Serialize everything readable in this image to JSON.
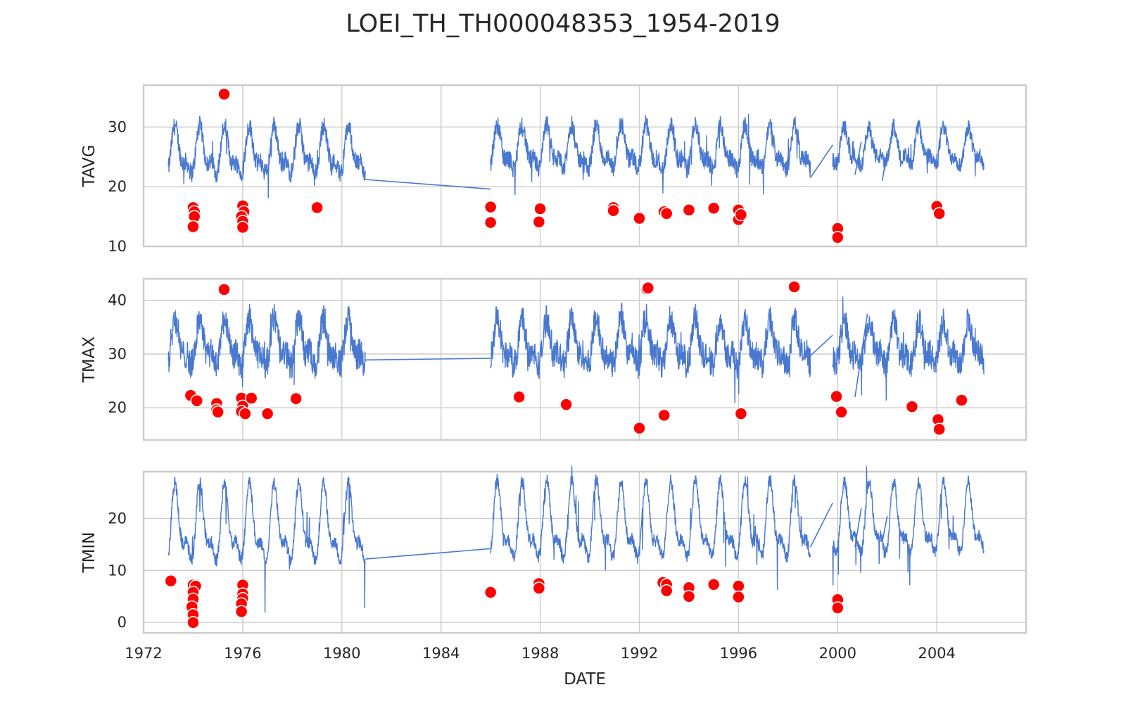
{
  "chart_data": {
    "type": "line",
    "title": "LOEI_TH_TH000048353_1954-2019",
    "xlabel": "DATE",
    "x_ticks": [
      "1972",
      "1976",
      "1980",
      "1984",
      "1988",
      "1992",
      "1996",
      "2000",
      "2004"
    ],
    "xlim": [
      1972.0,
      2007.6
    ],
    "grid": true,
    "series_color": "#4878cf",
    "outlier_color": "#ff0000",
    "panels": [
      {
        "ylabel": "TAVG",
        "ylim": [
          10,
          37
        ],
        "y_ticks": [
          10,
          20,
          30
        ],
        "segments": [
          {
            "x0": 1973.0,
            "x1": 1980.95,
            "base": 25.5,
            "amp": 3.2,
            "spread": 1.6
          },
          {
            "x0": 1986.0,
            "x1": 1998.9,
            "base": 26.0,
            "amp": 3.0,
            "spread": 1.6
          },
          {
            "x0": 1999.8,
            "x1": 2005.9,
            "base": 26.2,
            "amp": 2.6,
            "spread": 1.4
          }
        ],
        "connectors": [
          {
            "x0": 1980.95,
            "y0": 21.2,
            "x1": 1986.0,
            "y1": 19.6
          },
          {
            "x0": 1998.9,
            "y0": 21.5,
            "x1": 1999.8,
            "y1": 27.0
          },
          {
            "x0": 2000.7,
            "y0": 22.0,
            "x1": 2000.95,
            "y1": 27.5
          },
          {
            "x0": 2001.8,
            "y0": 21.0,
            "x1": 2002.0,
            "y1": 26.0
          }
        ],
        "outliers": [
          [
            1974.0,
            16.5
          ],
          [
            1974.05,
            15.8
          ],
          [
            1974.05,
            15.0
          ],
          [
            1974.0,
            13.3
          ],
          [
            1975.25,
            35.5
          ],
          [
            1976.0,
            16.8
          ],
          [
            1976.05,
            15.8
          ],
          [
            1975.95,
            15.0
          ],
          [
            1976.0,
            14.2
          ],
          [
            1976.0,
            13.2
          ],
          [
            1979.0,
            16.5
          ],
          [
            1986.0,
            16.6
          ],
          [
            1986.0,
            14.0
          ],
          [
            1988.0,
            16.3
          ],
          [
            1987.95,
            14.1
          ],
          [
            1990.95,
            16.5
          ],
          [
            1990.95,
            16.0
          ],
          [
            1992.0,
            14.7
          ],
          [
            1993.0,
            15.8
          ],
          [
            1993.1,
            15.5
          ],
          [
            1994.0,
            16.1
          ],
          [
            1995.0,
            16.4
          ],
          [
            1996.0,
            16.1
          ],
          [
            1996.0,
            14.5
          ],
          [
            1996.1,
            15.3
          ],
          [
            2000.0,
            13.0
          ],
          [
            2000.0,
            11.5
          ],
          [
            2004.0,
            16.7
          ],
          [
            2004.1,
            15.5
          ]
        ]
      },
      {
        "ylabel": "TMAX",
        "ylim": [
          14,
          44
        ],
        "y_ticks": [
          20,
          30,
          40
        ],
        "segments": [
          {
            "x0": 1973.0,
            "x1": 1980.95,
            "base": 31.5,
            "amp": 3.5,
            "spread": 2.8
          },
          {
            "x0": 1986.0,
            "x1": 1998.9,
            "base": 31.5,
            "amp": 3.5,
            "spread": 2.8
          },
          {
            "x0": 1999.8,
            "x1": 2005.9,
            "base": 31.5,
            "amp": 3.2,
            "spread": 2.6
          }
        ],
        "connectors": [
          {
            "x0": 1980.95,
            "y0": 28.9,
            "x1": 1986.0,
            "y1": 29.2
          },
          {
            "x0": 1998.9,
            "y0": 29.7,
            "x1": 1999.8,
            "y1": 33.5
          },
          {
            "x0": 2000.7,
            "y0": 22.0,
            "x1": 2001.2,
            "y1": 37.5
          }
        ],
        "outliers": [
          [
            1973.9,
            22.3
          ],
          [
            1974.15,
            21.3
          ],
          [
            1974.95,
            20.8
          ],
          [
            1974.95,
            19.6
          ],
          [
            1975.0,
            19.2
          ],
          [
            1975.25,
            42.0
          ],
          [
            1975.95,
            21.8
          ],
          [
            1976.0,
            20.3
          ],
          [
            1975.95,
            19.3
          ],
          [
            1976.1,
            18.9
          ],
          [
            1976.35,
            21.8
          ],
          [
            1977.0,
            18.9
          ],
          [
            1978.15,
            21.7
          ],
          [
            1987.15,
            22.0
          ],
          [
            1989.05,
            20.6
          ],
          [
            1992.0,
            16.2
          ],
          [
            1992.3,
            42.1
          ],
          [
            1992.35,
            42.3
          ],
          [
            1993.0,
            18.6
          ],
          [
            1996.1,
            18.9
          ],
          [
            1998.25,
            42.5
          ],
          [
            1999.95,
            22.1
          ],
          [
            2000.15,
            19.2
          ],
          [
            2003.0,
            20.2
          ],
          [
            2004.05,
            17.8
          ],
          [
            2004.1,
            16.0
          ],
          [
            2005.0,
            21.4
          ]
        ]
      },
      {
        "ylabel": "TMIN",
        "ylim": [
          -2,
          29
        ],
        "y_ticks": [
          0,
          10,
          20
        ],
        "segments": [
          {
            "x0": 1973.0,
            "x1": 1980.95,
            "base": 18.0,
            "amp": 6.0,
            "spread": 1.3
          },
          {
            "x0": 1986.0,
            "x1": 1998.9,
            "base": 18.5,
            "amp": 6.0,
            "spread": 1.3
          },
          {
            "x0": 1999.8,
            "x1": 2005.9,
            "base": 19.0,
            "amp": 5.5,
            "spread": 1.2
          }
        ],
        "connectors": [
          {
            "x0": 1980.95,
            "y0": 12.2,
            "x1": 1986.0,
            "y1": 14.2
          },
          {
            "x0": 1998.9,
            "y0": 14.5,
            "x1": 1999.8,
            "y1": 23.0
          },
          {
            "x0": 2000.7,
            "y0": 14.5,
            "x1": 2000.95,
            "y1": 22.0
          },
          {
            "x0": 2001.8,
            "y0": 15.5,
            "x1": 2002.0,
            "y1": 20.5
          }
        ],
        "outliers": [
          [
            1973.1,
            8.0
          ],
          [
            1974.0,
            7.2
          ],
          [
            1974.1,
            7.0
          ],
          [
            1974.0,
            5.8
          ],
          [
            1974.0,
            4.5
          ],
          [
            1973.95,
            3.0
          ],
          [
            1974.0,
            1.5
          ],
          [
            1974.0,
            0.0
          ],
          [
            1976.0,
            7.2
          ],
          [
            1976.0,
            5.5
          ],
          [
            1976.0,
            4.6
          ],
          [
            1975.95,
            3.6
          ],
          [
            1975.95,
            2.1
          ],
          [
            1986.0,
            5.8
          ],
          [
            1987.95,
            7.5
          ],
          [
            1987.95,
            6.6
          ],
          [
            1992.95,
            7.7
          ],
          [
            1993.1,
            7.3
          ],
          [
            1993.1,
            6.1
          ],
          [
            1994.0,
            6.7
          ],
          [
            1994.0,
            5.0
          ],
          [
            1995.0,
            7.3
          ],
          [
            1996.0,
            7.0
          ],
          [
            1996.0,
            4.9
          ],
          [
            2000.0,
            4.4
          ],
          [
            2000.0,
            2.8
          ]
        ]
      }
    ]
  }
}
